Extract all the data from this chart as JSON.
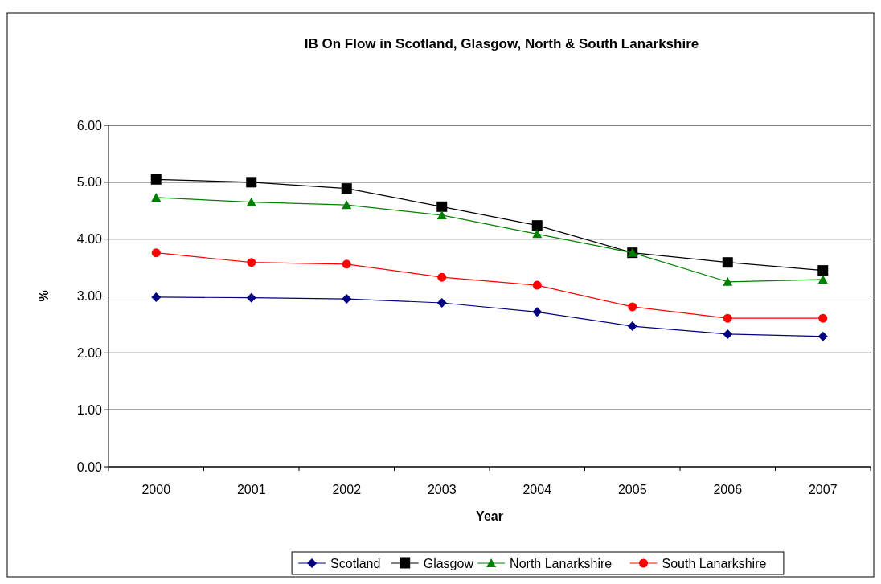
{
  "chart_data": {
    "type": "line",
    "title": "IB On Flow in Scotland, Glasgow, North & South Lanarkshire",
    "xlabel": "Year",
    "ylabel": "%",
    "categories": [
      "2000",
      "2001",
      "2002",
      "2003",
      "2004",
      "2005",
      "2006",
      "2007"
    ],
    "ylim": [
      0,
      6
    ],
    "yticks": [
      {
        "value": 0,
        "label": "0.00"
      },
      {
        "value": 1,
        "label": "1.00"
      },
      {
        "value": 2,
        "label": "2.00"
      },
      {
        "value": 3,
        "label": "3.00"
      },
      {
        "value": 4,
        "label": "4.00"
      },
      {
        "value": 5,
        "label": "5.00"
      },
      {
        "value": 6,
        "label": "6.00"
      }
    ],
    "grid": "y",
    "legend": "bottom",
    "series": [
      {
        "name": "Scotland",
        "color": "#000080",
        "marker": "diamond",
        "values": [
          2.98,
          2.97,
          2.95,
          2.88,
          2.72,
          2.47,
          2.33,
          2.29
        ]
      },
      {
        "name": "Glasgow",
        "color": "#000000",
        "marker": "square",
        "values": [
          5.05,
          5.0,
          4.89,
          4.57,
          4.24,
          3.76,
          3.59,
          3.45
        ]
      },
      {
        "name": "North Lanarkshire",
        "color": "#008000",
        "marker": "triangle",
        "values": [
          4.73,
          4.65,
          4.6,
          4.42,
          4.09,
          3.76,
          3.25,
          3.29
        ]
      },
      {
        "name": "South Lanarkshire",
        "color": "#ff0000",
        "marker": "circle",
        "values": [
          3.76,
          3.59,
          3.56,
          3.33,
          3.19,
          2.81,
          2.61,
          2.61
        ]
      }
    ]
  }
}
